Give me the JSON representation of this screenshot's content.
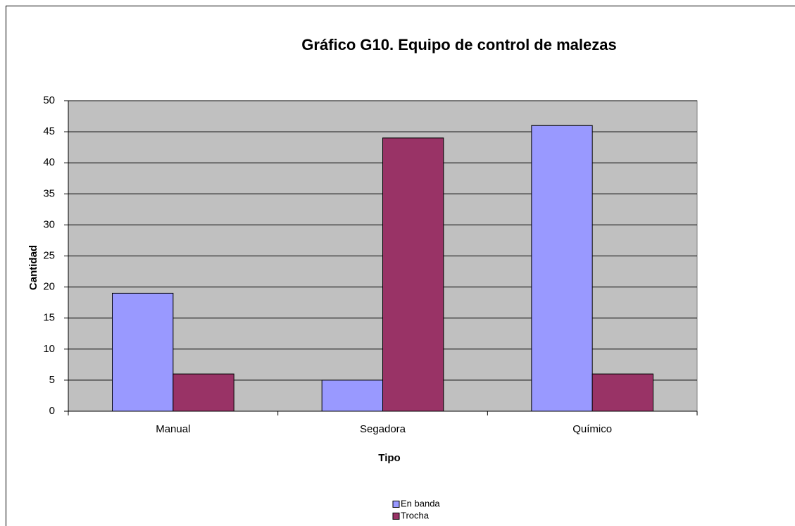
{
  "chart_data": {
    "type": "bar",
    "title": "Gráfico G10. Equipo de control de malezas",
    "x_label": "Tipo",
    "y_label": "Cantidad",
    "categories": [
      "Manual",
      "Segadora",
      "Químico"
    ],
    "series": [
      {
        "name": "En banda",
        "color": "#9999ff",
        "values": [
          19,
          5,
          46
        ]
      },
      {
        "name": "Trocha",
        "color": "#993366",
        "values": [
          6,
          44,
          6
        ]
      }
    ],
    "ylim": [
      0,
      50
    ],
    "yticks": [
      0,
      5,
      10,
      15,
      20,
      25,
      30,
      35,
      40,
      45,
      50
    ],
    "grid": true,
    "legend": "bottom"
  }
}
